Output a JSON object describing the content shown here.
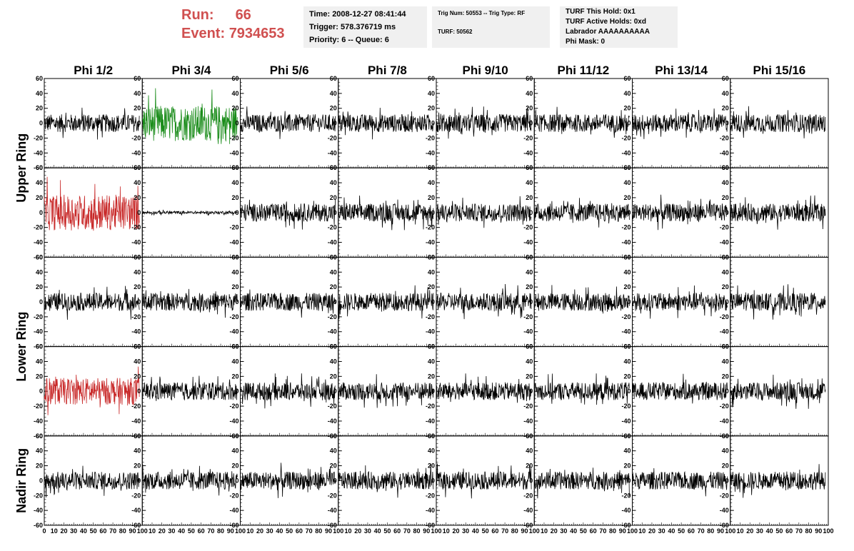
{
  "run_info": {
    "run_label": "Run:",
    "run_value": "66",
    "event_label": "Event:",
    "event_value": "7934653"
  },
  "info_boxes": {
    "timing": {
      "time": "Time: 2008-12-27 08:41:44",
      "trigger": "Trigger: 578.376719 ms",
      "priority": "Priority: 6 -- Queue: 6"
    },
    "trig": {
      "trig_line": "Trig Num: 50553 -- Trig Type: RF",
      "turf_line": "TURF: 50562"
    },
    "turf": {
      "this_hold": "TURF This Hold: 0x1",
      "active_holds": "TURF Active Holds: 0xd",
      "labrador": "Labrador AAAAAAAAAA",
      "phi_mask": "Phi Mask: 0"
    }
  },
  "colors": {
    "trace_default": "#000000",
    "trace_green": "#1a8c1a",
    "trace_red": "#c82828",
    "run_text": "#d05050",
    "info_bg": "#f0f0f0"
  },
  "chart_data": {
    "type": "line",
    "column_titles": [
      "Phi 1/2",
      "Phi 3/4",
      "Phi 5/6",
      "Phi 7/8",
      "Phi 9/10",
      "Phi 11/12",
      "Phi 13/14",
      "Phi 15/16"
    ],
    "row_titles": [
      "Upper Ring",
      "Lower Ring",
      "Nadir Ring"
    ],
    "rows": 5,
    "columns": 8,
    "xlim": [
      0,
      100
    ],
    "ylim": [
      -60,
      60
    ],
    "x_ticks": [
      0,
      10,
      20,
      30,
      40,
      50,
      60,
      70,
      80,
      90,
      100
    ],
    "y_ticks": [
      -60,
      -40,
      -20,
      0,
      20,
      40,
      60
    ],
    "samples_per_trace": 260,
    "panel_styles": [
      {
        "row": 0,
        "col": 1,
        "color": "green",
        "amplitude": 24
      },
      {
        "row": 1,
        "col": 0,
        "color": "red",
        "amplitude": 24
      },
      {
        "row": 1,
        "col": 1,
        "color": "black",
        "amplitude": 2
      },
      {
        "row": 3,
        "col": 0,
        "color": "red",
        "amplitude": 18
      }
    ],
    "default_amplitude": 12
  }
}
